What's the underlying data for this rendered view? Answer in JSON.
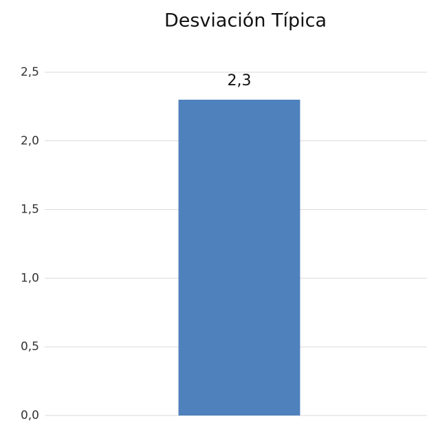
{
  "chart_data": {
    "type": "bar",
    "title": "Desviación Típica",
    "categories": [
      null
    ],
    "values": [
      2.3
    ],
    "value_labels": [
      "2,3"
    ],
    "color": "#4f81bd",
    "ylim": [
      0,
      2.5
    ],
    "yticks": [
      {
        "value": 0,
        "label": "0,0"
      },
      {
        "value": 0.5,
        "label": "0,5"
      },
      {
        "value": 1,
        "label": "1,0"
      },
      {
        "value": 1.5,
        "label": "1,5"
      },
      {
        "value": 2,
        "label": "2,0"
      },
      {
        "value": 2.5,
        "label": "2,5"
      }
    ],
    "grid": true
  }
}
